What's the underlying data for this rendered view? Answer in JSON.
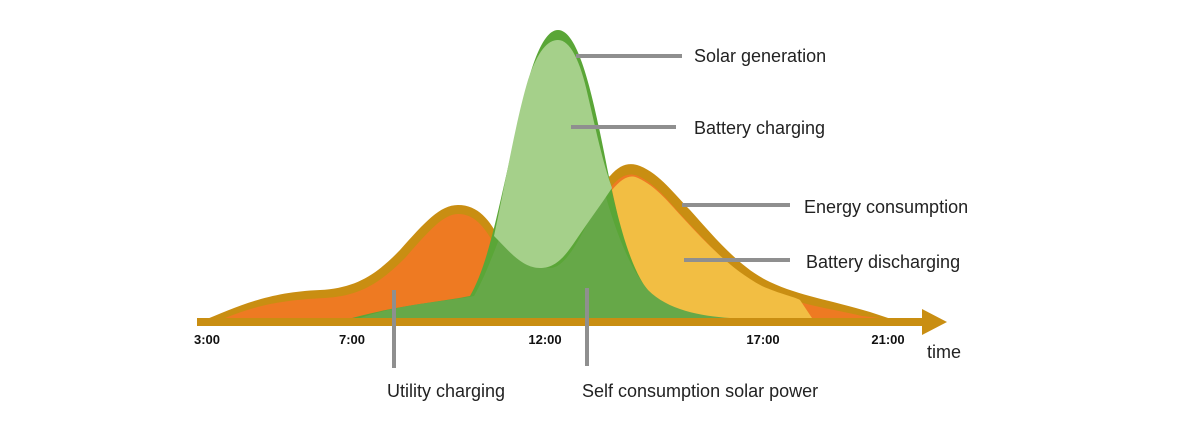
{
  "labels": {
    "solar_generation": "Solar generation",
    "battery_charging": "Battery charging",
    "energy_consumption": "Energy consumption",
    "battery_discharging": "Battery discharging",
    "utility_charging": "Utility charging",
    "self_consumption": "Self consumption solar power"
  },
  "axis": {
    "label": "time",
    "ticks": [
      "3:00",
      "7:00",
      "12:00",
      "17:00",
      "21:00"
    ]
  },
  "colors": {
    "consumption_outline": "#C98E12",
    "utility_charging_fill": "#EE7A22",
    "battery_discharging_fill": "#F2BE43",
    "solar_outline": "#5AA637",
    "battery_charging_fill": "#A5D08A",
    "self_consumption_fill": "#66A848",
    "leader_line": "#8F8F8F"
  }
}
